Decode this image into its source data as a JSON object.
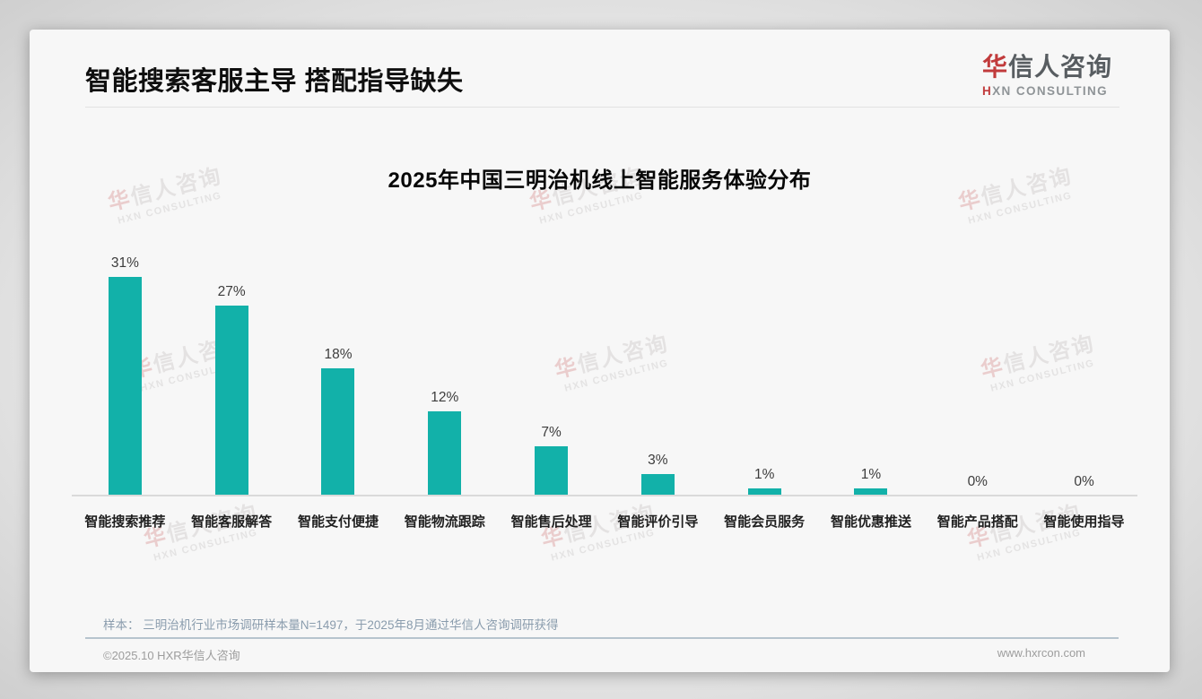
{
  "header": {
    "title": "智能搜索客服主导 搭配指导缺失",
    "logo": {
      "cn_first": "华",
      "cn_rest": "信人咨询",
      "en_first": "H",
      "en_rest": "XN CONSULTING",
      "accent_color": "#c13b3c"
    }
  },
  "watermark": {
    "line1_first": "华",
    "line1_rest": "信人咨询",
    "line2": "HXN CONSULTING"
  },
  "chart_data": {
    "type": "bar",
    "title": "2025年中国三明治机线上智能服务体验分布",
    "categories": [
      "智能搜索推荐",
      "智能客服解答",
      "智能支付便捷",
      "智能物流跟踪",
      "智能售后处理",
      "智能评价引导",
      "智能会员服务",
      "智能优惠推送",
      "智能产品搭配",
      "智能使用指导"
    ],
    "values": [
      31,
      27,
      18,
      12,
      7,
      3,
      1,
      1,
      0,
      0
    ],
    "value_suffix": "%",
    "bar_color": "#12b1a9",
    "xlabel": "",
    "ylabel": "",
    "ylim": [
      0,
      33
    ],
    "grid": false,
    "legend": false,
    "value_labels_shown": true
  },
  "footer": {
    "note": "样本： 三明治机行业市场调研样本量N=1497，于2025年8月通过华信人咨询调研获得",
    "copyright": "©2025.10 HXR华信人咨询",
    "website": "www.hxrcon.com"
  }
}
